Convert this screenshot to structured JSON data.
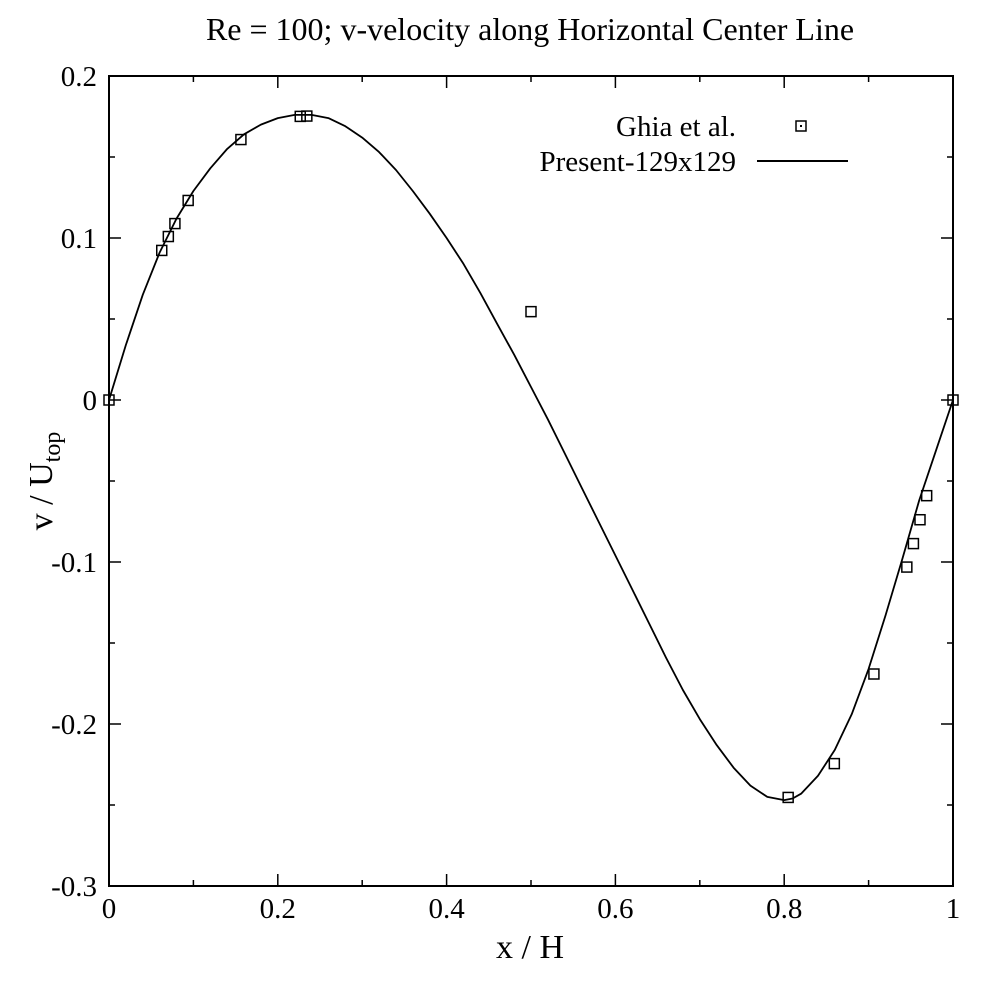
{
  "chart_data": {
    "type": "line",
    "title": "Re = 100; v-velocity along Horizontal Center Line",
    "xlabel": "x / H",
    "ylabel_main": "v / U",
    "ylabel_sub": "top",
    "xlim": [
      0,
      1
    ],
    "ylim": [
      -0.3,
      0.2
    ],
    "x_ticks": [
      0,
      0.2,
      0.4,
      0.6,
      0.8,
      1
    ],
    "x_tick_labels": [
      "0",
      "0.2",
      "0.4",
      "0.6",
      "0.8",
      "1"
    ],
    "y_ticks": [
      -0.3,
      -0.2,
      -0.1,
      0,
      0.1,
      0.2
    ],
    "y_tick_labels": [
      "-0.3",
      "-0.2",
      "-0.1",
      "0",
      "0.1",
      "0.2"
    ],
    "grid": false,
    "legend_position": "top-right",
    "series": [
      {
        "name": "Ghia et al.",
        "style": "markers",
        "marker": "square",
        "x": [
          0.0,
          0.0625,
          0.0703,
          0.0781,
          0.0938,
          0.1563,
          0.2266,
          0.2344,
          0.5,
          0.8047,
          0.8594,
          0.9063,
          0.9453,
          0.9531,
          0.9609,
          0.9688,
          1.0
        ],
        "y": [
          0.0,
          0.09233,
          0.10091,
          0.1089,
          0.12317,
          0.16077,
          0.17507,
          0.17527,
          0.05454,
          -0.24533,
          -0.22445,
          -0.16914,
          -0.10313,
          -0.08864,
          -0.07391,
          -0.05906,
          0.0
        ]
      },
      {
        "name": "Present-129x129",
        "style": "line",
        "x": [
          0.0,
          0.02,
          0.04,
          0.06,
          0.08,
          0.1,
          0.12,
          0.14,
          0.16,
          0.18,
          0.2,
          0.22,
          0.24,
          0.26,
          0.28,
          0.3,
          0.32,
          0.34,
          0.36,
          0.38,
          0.4,
          0.42,
          0.44,
          0.46,
          0.48,
          0.5,
          0.52,
          0.54,
          0.56,
          0.58,
          0.6,
          0.62,
          0.64,
          0.66,
          0.68,
          0.7,
          0.72,
          0.74,
          0.76,
          0.78,
          0.8,
          0.81,
          0.82,
          0.84,
          0.86,
          0.88,
          0.9,
          0.92,
          0.94,
          0.96,
          0.98,
          1.0
        ],
        "y": [
          0.0,
          0.034,
          0.065,
          0.091,
          0.112,
          0.129,
          0.143,
          0.155,
          0.164,
          0.17,
          0.174,
          0.176,
          0.176,
          0.174,
          0.169,
          0.162,
          0.153,
          0.142,
          0.129,
          0.115,
          0.1,
          0.084,
          0.066,
          0.047,
          0.028,
          0.008,
          -0.012,
          -0.033,
          -0.054,
          -0.075,
          -0.096,
          -0.117,
          -0.138,
          -0.159,
          -0.179,
          -0.197,
          -0.213,
          -0.227,
          -0.238,
          -0.245,
          -0.247,
          -0.246,
          -0.243,
          -0.232,
          -0.216,
          -0.194,
          -0.166,
          -0.133,
          -0.098,
          -0.062,
          -0.031,
          0.0
        ]
      }
    ]
  }
}
